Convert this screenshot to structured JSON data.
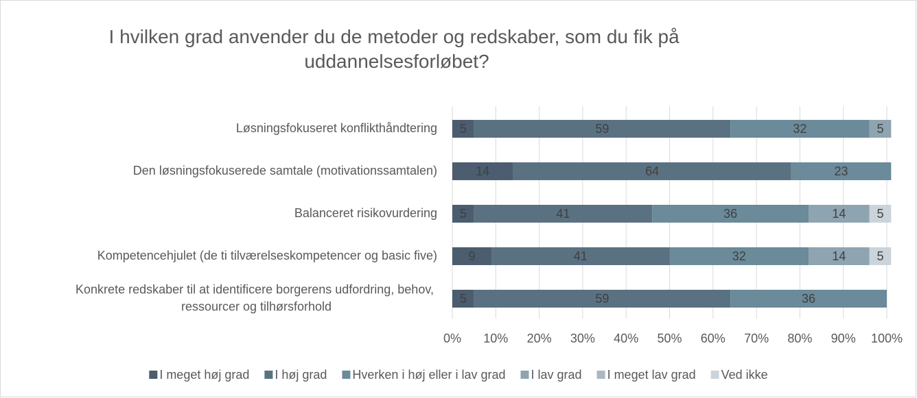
{
  "chart_data": {
    "type": "stacked-bar-horizontal",
    "title": "I hvilken grad anvender du de metoder og redskaber, som du fik på uddannelsesforløbet?",
    "categories": [
      "Løsningsfokuseret konflikthåndtering",
      "Den løsningsfokuserede samtale (motivationssamtalen)",
      "Balanceret risikovurdering",
      "Kompetencehjulet (de ti tilværelseskompetencer og basic five)",
      "Konkrete redskaber til at identificere borgerens udfordring, behov, ressourcer og tilhørsforhold"
    ],
    "series": [
      {
        "name": "I meget høj grad",
        "color": "#4b5d6e",
        "values": [
          5,
          14,
          5,
          9,
          5
        ]
      },
      {
        "name": "I høj grad",
        "color": "#5a7182",
        "values": [
          59,
          64,
          41,
          41,
          59
        ]
      },
      {
        "name": "Hverken i høj eller i lav grad",
        "color": "#6b8a9a",
        "values": [
          32,
          23,
          36,
          32,
          36
        ]
      },
      {
        "name": "I lav grad",
        "color": "#8ea4b1",
        "values": [
          5,
          null,
          14,
          14,
          null
        ]
      },
      {
        "name": "I meget lav grad",
        "color": "#a9b8c3",
        "values": [
          null,
          null,
          null,
          null,
          null
        ]
      },
      {
        "name": "Ved ikke",
        "color": "#cbd4db",
        "values": [
          null,
          null,
          5,
          5,
          null
        ]
      }
    ],
    "xlim": [
      0,
      100
    ],
    "xticks": [
      {
        "value": 0,
        "label": "0%"
      },
      {
        "value": 10,
        "label": "10%"
      },
      {
        "value": 20,
        "label": "20%"
      },
      {
        "value": 30,
        "label": "30%"
      },
      {
        "value": 40,
        "label": "40%"
      },
      {
        "value": 50,
        "label": "50%"
      },
      {
        "value": 60,
        "label": "60%"
      },
      {
        "value": 70,
        "label": "70%"
      },
      {
        "value": 80,
        "label": "80%"
      },
      {
        "value": 90,
        "label": "90%"
      },
      {
        "value": 100,
        "label": "100%"
      }
    ],
    "grid": true,
    "legend": "bottom"
  }
}
